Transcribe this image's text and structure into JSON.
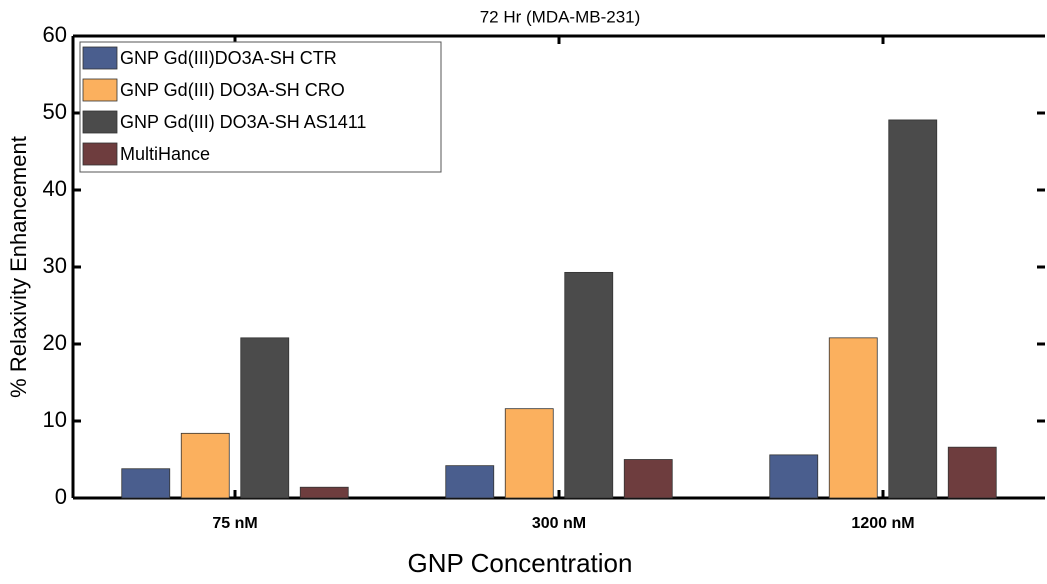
{
  "chart_data": {
    "type": "bar",
    "title": "72 Hr (MDA-MB-231)",
    "y_label": "% Relaxivity Enhancement",
    "x_label": "GNP Concentration",
    "categories": [
      "75 nM",
      "300 nM",
      "1200 nM"
    ],
    "series": [
      {
        "name": "GNP Gd(III)DO3A-SH CTR",
        "color": "#4a5e8e",
        "values": [
          3.8,
          4.2,
          5.6
        ]
      },
      {
        "name": "GNP Gd(III) DO3A-SH CRO",
        "color": "#fbb05e",
        "values": [
          8.4,
          11.6,
          20.8
        ]
      },
      {
        "name": "GNP Gd(III) DO3A-SH AS1411",
        "color": "#4b4b4b",
        "values": [
          20.8,
          29.3,
          49.1
        ]
      },
      {
        "name": "MultiHance",
        "color": "#6e3d3e",
        "values": [
          1.4,
          5.0,
          6.6
        ]
      }
    ],
    "ylim": [
      0,
      60
    ],
    "yticks": [
      0,
      10,
      20,
      30,
      40,
      50,
      60
    ],
    "legend": "upper left"
  }
}
